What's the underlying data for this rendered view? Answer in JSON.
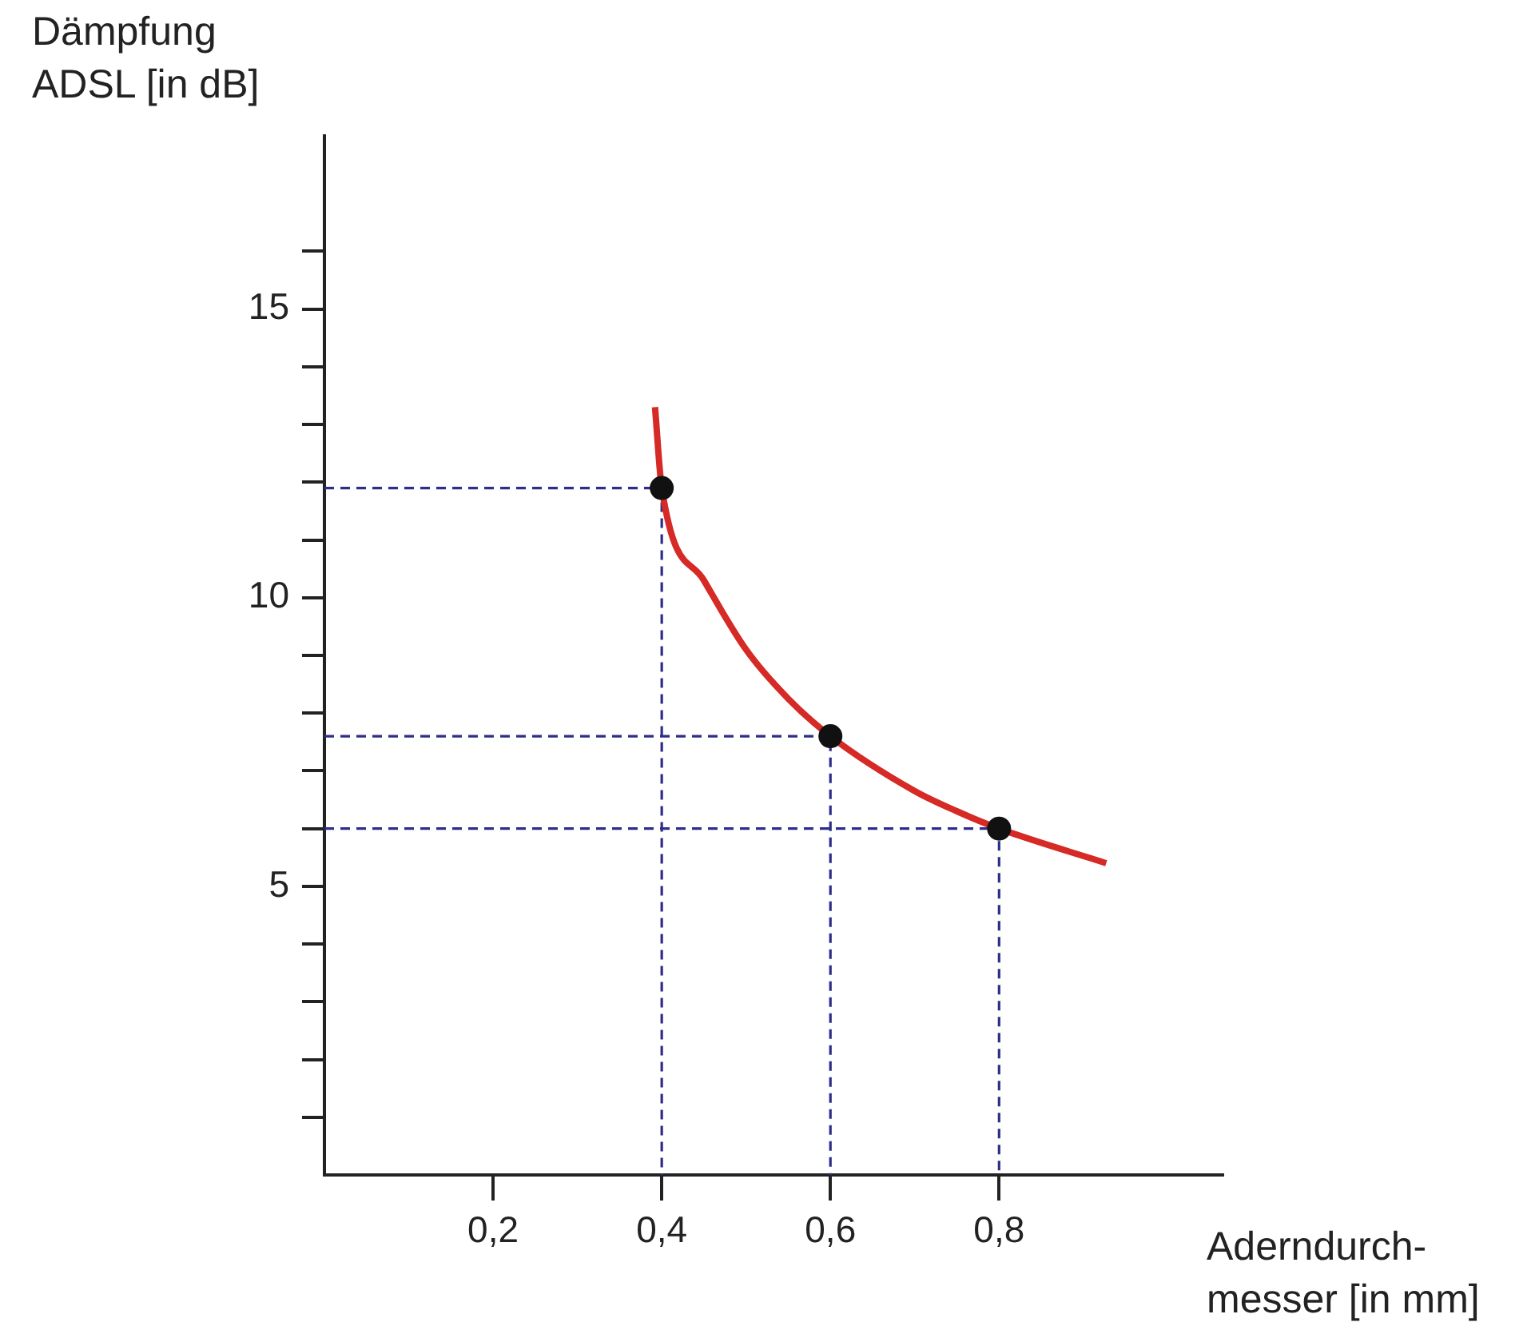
{
  "chart_data": {
    "type": "line",
    "xlabel": "Aderndurch-\nmesser [in mm]",
    "ylabel": "Dämpfung\nADSL [in dB]",
    "xlim": [
      0,
      1.065
    ],
    "ylim": [
      0,
      18
    ],
    "xticks": [
      {
        "value": 0.2,
        "label": "0,2"
      },
      {
        "value": 0.4,
        "label": "0,4"
      },
      {
        "value": 0.6,
        "label": "0,6"
      },
      {
        "value": 0.8,
        "label": "0,8"
      }
    ],
    "yticks": [
      {
        "value": 1,
        "label": null
      },
      {
        "value": 2,
        "label": null
      },
      {
        "value": 3,
        "label": null
      },
      {
        "value": 4,
        "label": null
      },
      5,
      {
        "value": 6,
        "label": null
      },
      {
        "value": 7,
        "label": null
      },
      {
        "value": 8,
        "label": null
      },
      {
        "value": 9,
        "label": null
      },
      10,
      {
        "value": 11,
        "label": null
      },
      {
        "value": 12,
        "label": null
      },
      {
        "value": 13,
        "label": null
      },
      {
        "value": 14,
        "label": null
      },
      15,
      {
        "value": 16,
        "label": null
      }
    ],
    "grid": false,
    "legend": false,
    "series": [
      {
        "color": "#d62a26",
        "marker": "none",
        "line_style": "solid",
        "x": [
          0.392,
          0.4,
          0.45,
          0.5,
          0.55,
          0.6,
          0.7,
          0.75,
          0.8,
          0.927
        ],
        "values": [
          13.3,
          11.9,
          10.3,
          9.1,
          8.25,
          7.6,
          6.65,
          6.3,
          6.0,
          5.4
        ]
      },
      {
        "color": "#2e2e8a",
        "marker": "none",
        "line_style": "dashed",
        "x": [
          0,
          0.4,
          0.4
        ],
        "values": [
          11.9,
          11.9,
          0
        ]
      },
      {
        "color": "#2e2e8a",
        "marker": "none",
        "line_style": "dashed",
        "x": [
          0,
          0.6,
          0.6
        ],
        "values": [
          7.6,
          7.6,
          0
        ]
      },
      {
        "color": "#2e2e8a",
        "marker": "none",
        "line_style": "dashed",
        "x": [
          0,
          0.8,
          0.8
        ],
        "values": [
          6.0,
          6.0,
          0
        ]
      },
      {
        "type": "scatter",
        "color": "#111111",
        "marker": "circle",
        "x": [
          0.4,
          0.6,
          0.8
        ],
        "values": [
          11.9,
          7.6,
          6.0
        ]
      }
    ]
  }
}
